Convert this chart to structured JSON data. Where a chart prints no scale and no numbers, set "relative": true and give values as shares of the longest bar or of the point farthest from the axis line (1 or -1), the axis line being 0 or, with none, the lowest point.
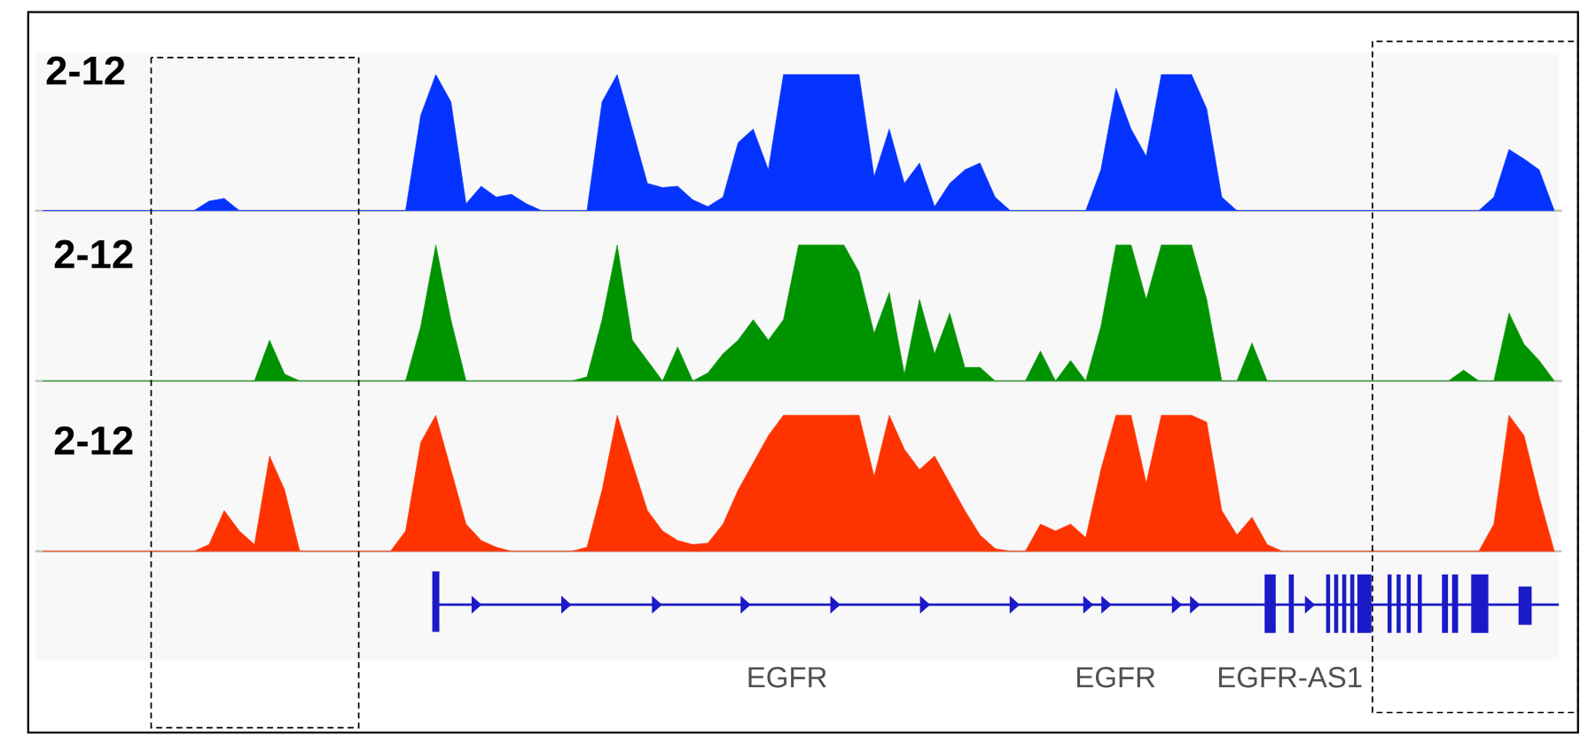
{
  "chart_data": [
    {
      "type": "area",
      "ylabel": "2-12",
      "relative": true,
      "color": "#0433ff",
      "categories": [
        null,
        null,
        null,
        null,
        null,
        null,
        null,
        null,
        null,
        null,
        null,
        null,
        null,
        null,
        null,
        null,
        null,
        null,
        null,
        null,
        null,
        null,
        null,
        null,
        null,
        null,
        null,
        null,
        null,
        null,
        null,
        null,
        null,
        null,
        null,
        null,
        null,
        null,
        null,
        null,
        null,
        null,
        null,
        null,
        null,
        null,
        null,
        null,
        null,
        null,
        null,
        null,
        null,
        null,
        null,
        null,
        null,
        null,
        null,
        null,
        null,
        null,
        null,
        null,
        null,
        null,
        null,
        null,
        null,
        null,
        null,
        null,
        null,
        null,
        null,
        null,
        null,
        null,
        null,
        null,
        null,
        null,
        null,
        null,
        null,
        null,
        null,
        null,
        null,
        null,
        null,
        null,
        null,
        null,
        null,
        null,
        null,
        null,
        null,
        null,
        null
      ],
      "values": [
        0,
        0,
        0,
        0,
        0,
        0,
        0,
        0,
        0,
        0,
        0,
        0.07,
        0.09,
        0,
        0,
        0,
        0,
        0,
        0,
        0,
        0,
        0,
        0,
        0,
        0,
        0.7,
        1,
        0.8,
        0.05,
        0.18,
        0.1,
        0.12,
        0.05,
        0,
        0,
        0,
        0,
        0.8,
        1,
        0.6,
        0.2,
        0.17,
        0.18,
        0.08,
        0.03,
        0.1,
        0.5,
        0.6,
        0.3,
        1,
        1,
        1,
        1,
        1,
        1,
        0.25,
        0.6,
        0.2,
        0.35,
        0.03,
        0.2,
        0.3,
        0.35,
        0.1,
        0,
        0,
        0,
        0,
        0,
        0,
        0.3,
        0.9,
        0.6,
        0.4,
        1,
        1,
        1,
        0.75,
        0.1,
        0,
        0,
        0,
        0,
        0,
        0,
        0,
        0,
        0,
        0,
        0,
        0,
        0,
        0,
        0,
        0,
        0,
        0.1,
        0.45,
        0.38,
        0.3,
        0
      ]
    },
    {
      "type": "area",
      "ylabel": "2-12",
      "relative": true,
      "color": "#009300",
      "categories": [
        null,
        null,
        null,
        null,
        null,
        null,
        null,
        null,
        null,
        null,
        null,
        null,
        null,
        null,
        null,
        null,
        null,
        null,
        null,
        null,
        null,
        null,
        null,
        null,
        null,
        null,
        null,
        null,
        null,
        null,
        null,
        null,
        null,
        null,
        null,
        null,
        null,
        null,
        null,
        null,
        null,
        null,
        null,
        null,
        null,
        null,
        null,
        null,
        null,
        null,
        null,
        null,
        null,
        null,
        null,
        null,
        null,
        null,
        null,
        null,
        null,
        null,
        null,
        null,
        null,
        null,
        null,
        null,
        null,
        null,
        null,
        null,
        null,
        null,
        null,
        null,
        null,
        null,
        null,
        null,
        null,
        null,
        null,
        null,
        null,
        null,
        null,
        null,
        null,
        null,
        null,
        null,
        null,
        null,
        null,
        null,
        null,
        null,
        null,
        null,
        null
      ],
      "values": [
        0,
        0,
        0,
        0,
        0,
        0,
        0,
        0,
        0,
        0,
        0,
        0,
        0,
        0,
        0,
        0.3,
        0.05,
        0,
        0,
        0,
        0,
        0,
        0,
        0,
        0,
        0.4,
        1,
        0.45,
        0,
        0,
        0,
        0,
        0,
        0,
        0,
        0,
        0.03,
        0.45,
        1,
        0.3,
        0.15,
        0,
        0.25,
        0,
        0.06,
        0.2,
        0.3,
        0.45,
        0.3,
        0.45,
        1,
        1,
        1,
        1,
        0.8,
        0.35,
        0.65,
        0.05,
        0.6,
        0.2,
        0.5,
        0.1,
        0.1,
        0,
        0,
        0,
        0.22,
        0,
        0.15,
        0,
        0.4,
        1,
        1,
        0.6,
        1,
        1,
        1,
        0.6,
        0,
        0,
        0.28,
        0,
        0,
        0,
        0,
        0,
        0,
        0,
        0,
        0,
        0,
        0,
        0,
        0,
        0.08,
        0,
        0,
        0.5,
        0.27,
        0.15,
        0
      ]
    },
    {
      "type": "area",
      "ylabel": "2-12",
      "relative": true,
      "color": "#ff3300",
      "categories": [
        null,
        null,
        null,
        null,
        null,
        null,
        null,
        null,
        null,
        null,
        null,
        null,
        null,
        null,
        null,
        null,
        null,
        null,
        null,
        null,
        null,
        null,
        null,
        null,
        null,
        null,
        null,
        null,
        null,
        null,
        null,
        null,
        null,
        null,
        null,
        null,
        null,
        null,
        null,
        null,
        null,
        null,
        null,
        null,
        null,
        null,
        null,
        null,
        null,
        null,
        null,
        null,
        null,
        null,
        null,
        null,
        null,
        null,
        null,
        null,
        null,
        null,
        null,
        null,
        null,
        null,
        null,
        null,
        null,
        null,
        null,
        null,
        null,
        null,
        null,
        null,
        null,
        null,
        null,
        null,
        null,
        null,
        null,
        null,
        null,
        null,
        null,
        null,
        null,
        null,
        null,
        null,
        null,
        null,
        null,
        null,
        null,
        null,
        null,
        null,
        null
      ],
      "values": [
        0,
        0,
        0,
        0,
        0,
        0,
        0,
        0,
        0,
        0,
        0,
        0.05,
        0.3,
        0.15,
        0.05,
        0.7,
        0.45,
        0,
        0,
        0,
        0,
        0,
        0,
        0,
        0.15,
        0.8,
        1,
        0.6,
        0.2,
        0.08,
        0.03,
        0,
        0,
        0,
        0,
        0,
        0.03,
        0.45,
        1,
        0.65,
        0.3,
        0.15,
        0.08,
        0.05,
        0.06,
        0.2,
        0.45,
        0.65,
        0.85,
        1,
        1,
        1,
        1,
        1,
        1,
        0.55,
        1,
        0.75,
        0.6,
        0.7,
        0.5,
        0.3,
        0.12,
        0.02,
        0,
        0,
        0.2,
        0.15,
        0.2,
        0.1,
        0.6,
        1,
        1,
        0.5,
        1,
        1,
        1,
        0.95,
        0.3,
        0.12,
        0.25,
        0.05,
        0,
        0,
        0,
        0,
        0,
        0,
        0,
        0,
        0,
        0,
        0,
        0,
        0,
        0,
        0.2,
        1,
        0.85,
        0.4,
        0
      ]
    },
    {
      "type": "other",
      "annotations": [
        "EGFR",
        "EGFR",
        "EGFR-AS1"
      ]
    }
  ]
}
